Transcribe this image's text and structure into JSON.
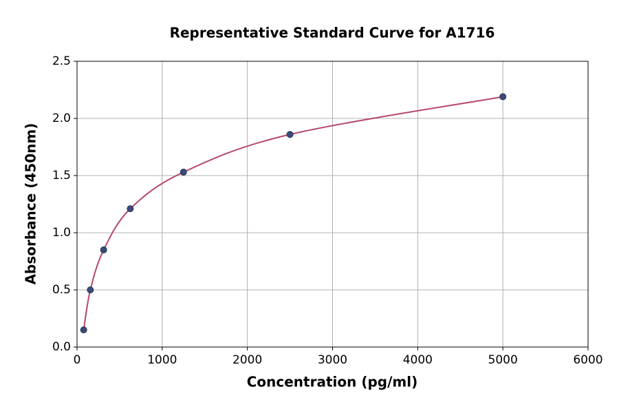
{
  "chart_data": {
    "type": "scatter",
    "title": "Representative Standard Curve for A1716",
    "x_label": "Concentration (pg/ml)",
    "y_label": "Absorbance (450nm)",
    "x": [
      78.125,
      156.25,
      312.5,
      625,
      1250,
      2500,
      5000
    ],
    "values": [
      0.15,
      0.5,
      0.85,
      1.21,
      1.53,
      1.86,
      2.19
    ],
    "color": "#3b4a7c",
    "line_color": "#b5476b",
    "xlim": [
      0,
      6000
    ],
    "xticks": [
      0,
      1000,
      2000,
      3000,
      4000,
      5000,
      6000
    ],
    "ylim": [
      0,
      2.5
    ],
    "yticks": [
      {
        "value": 0,
        "label": "0.0"
      },
      {
        "value": 0.5,
        "label": "0.5"
      },
      {
        "value": 1,
        "label": "1.0"
      },
      {
        "value": 1.5,
        "label": "1.5"
      },
      {
        "value": 2,
        "label": "2.0"
      },
      {
        "value": 2.5,
        "label": "2.5"
      }
    ],
    "grid": true
  }
}
